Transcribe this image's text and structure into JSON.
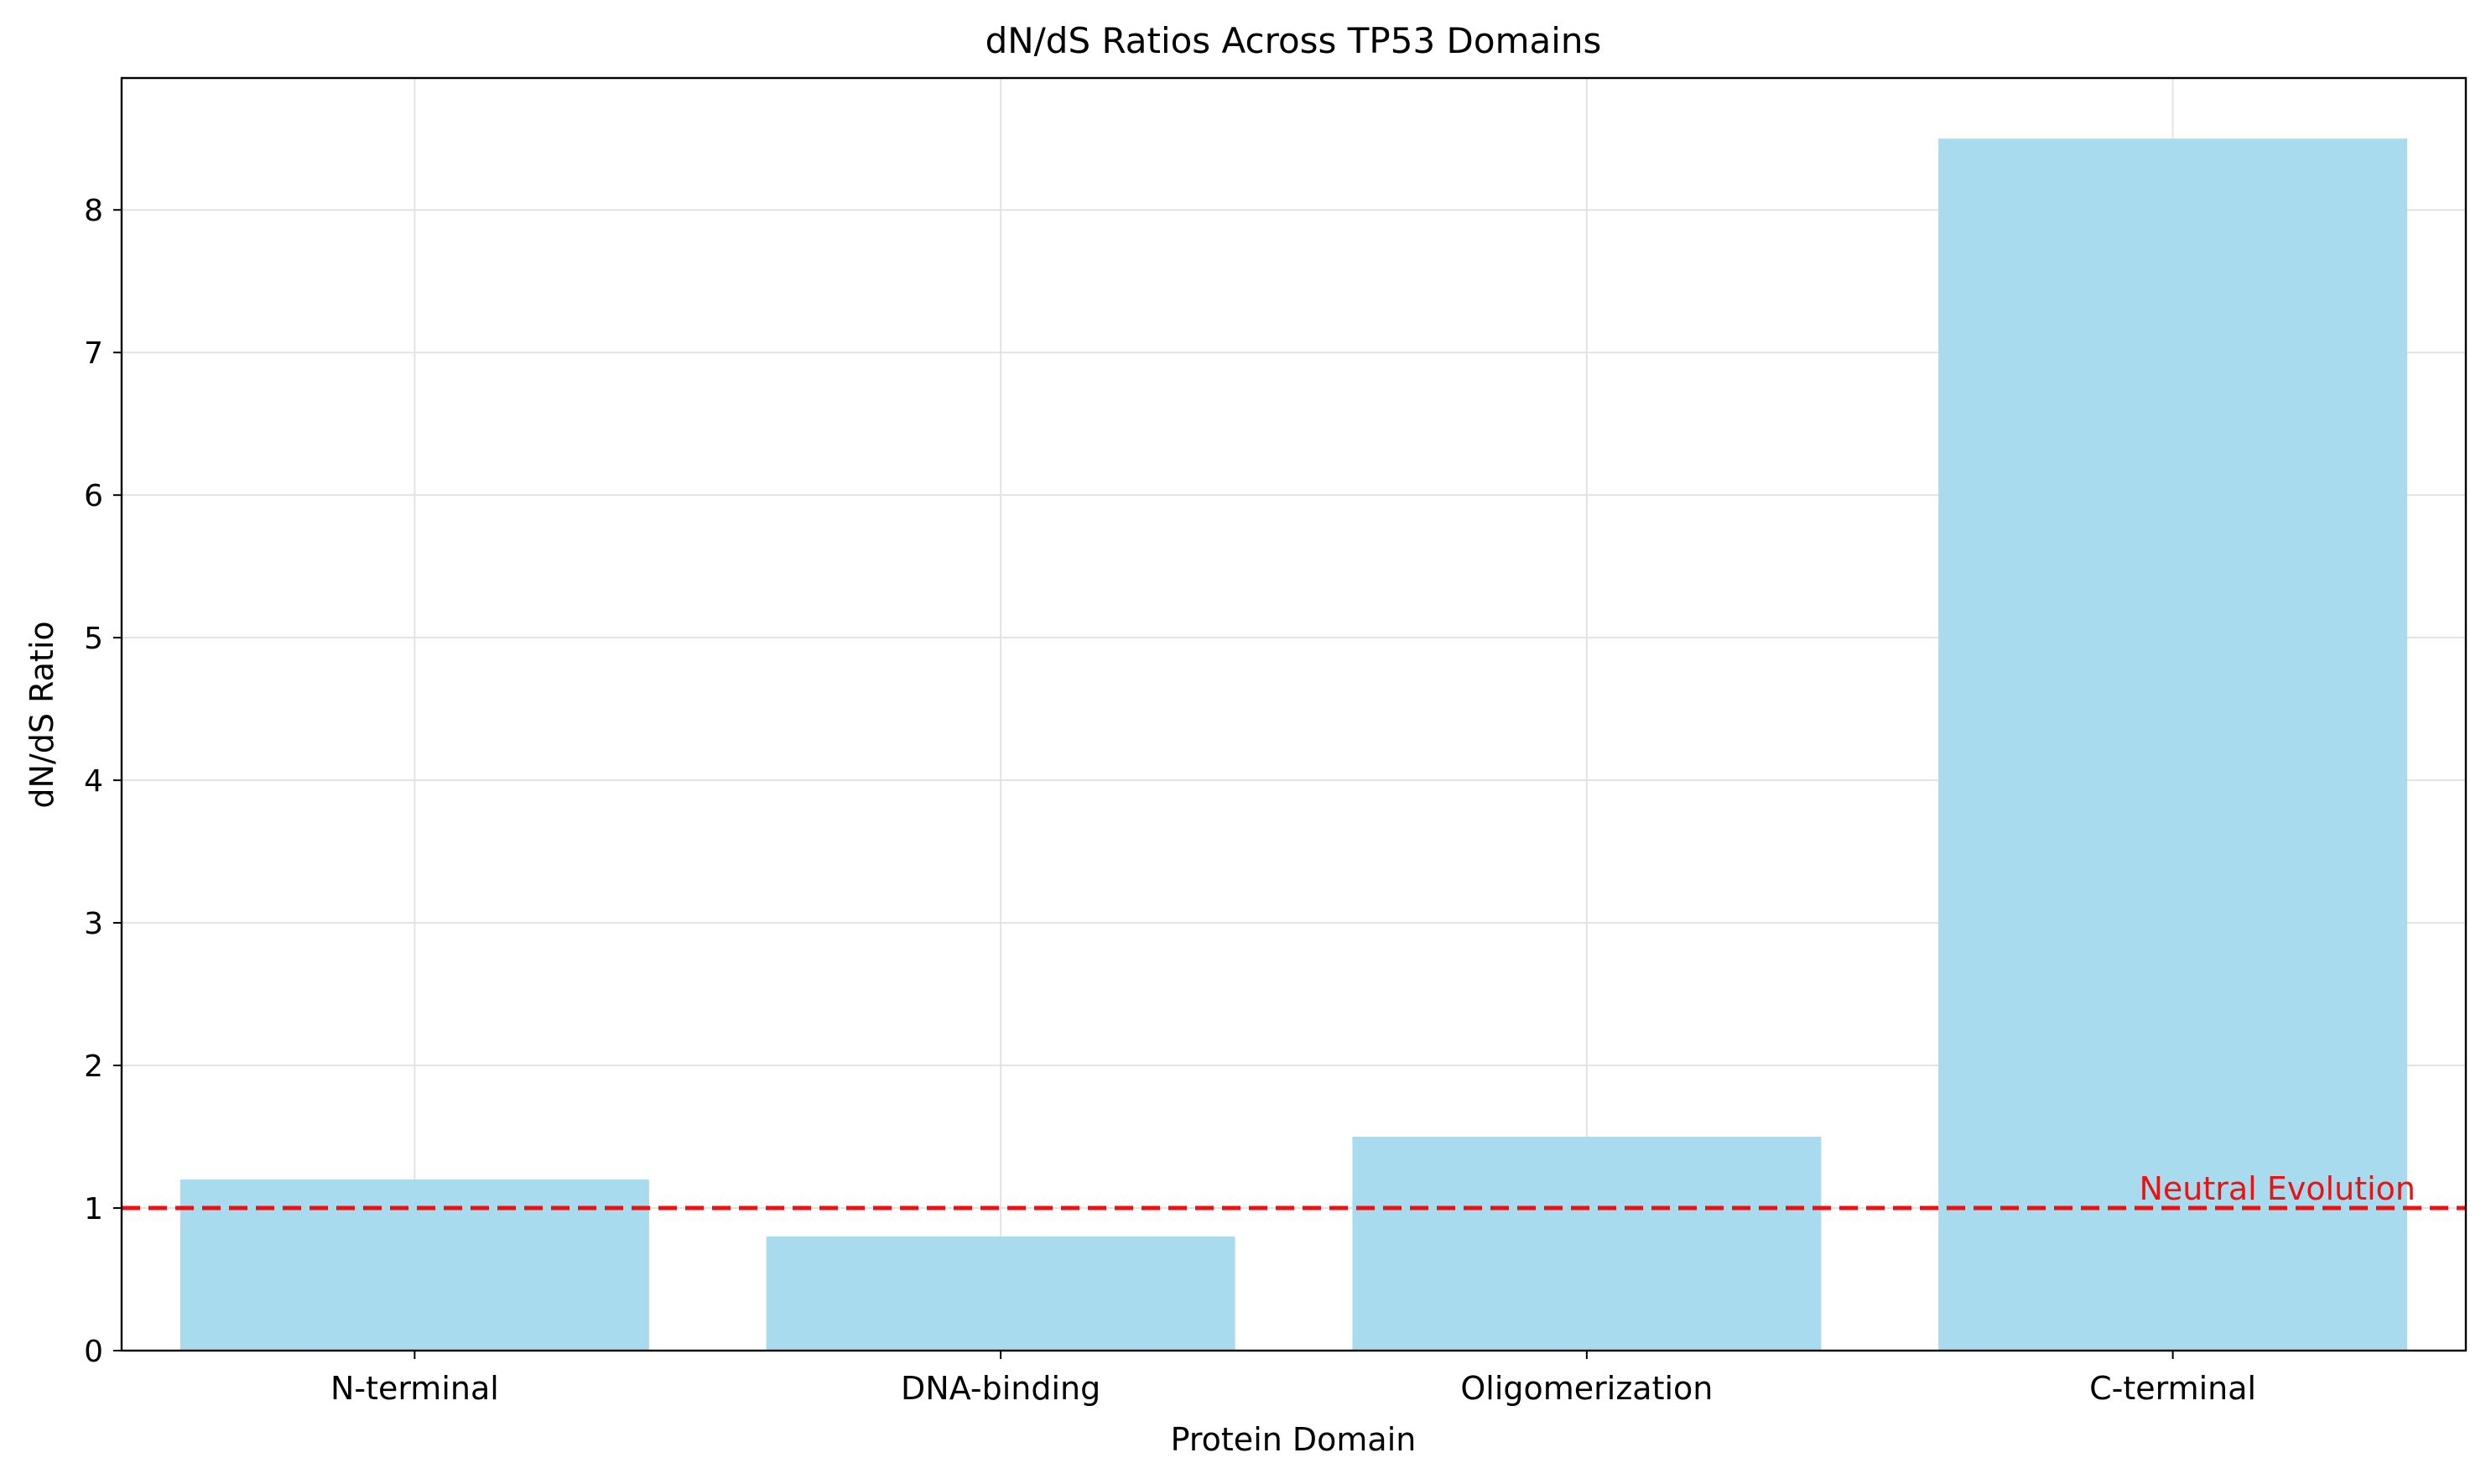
{
  "chart_data": {
    "type": "bar",
    "title": "dN/dS Ratios Across TP53 Domains",
    "xlabel": "Protein Domain",
    "ylabel": "dN/dS Ratio",
    "categories": [
      "N-terminal",
      "DNA-binding",
      "Oligomerization",
      "C-terminal"
    ],
    "values": [
      1.2,
      0.8,
      1.5,
      8.5
    ],
    "ylim": [
      0,
      8.925
    ],
    "yticks": [
      0,
      1,
      2,
      3,
      4,
      5,
      6,
      7,
      8
    ],
    "grid": true,
    "bar_color": "#a8dbed",
    "reference_line": {
      "y": 1,
      "label": "Neutral Evolution",
      "color": "#ee1111",
      "style": "dashed"
    }
  }
}
